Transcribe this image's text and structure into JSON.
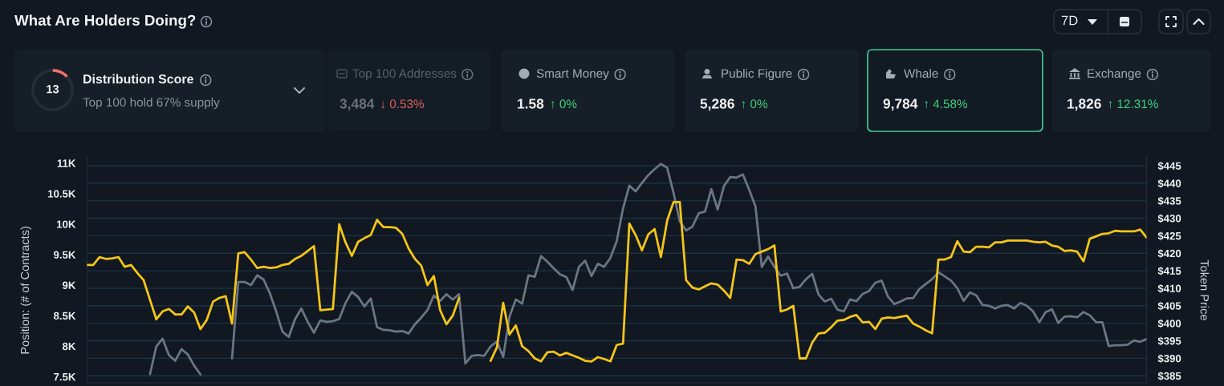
{
  "chart_data": [
    {
      "type": "other",
      "title": "What Are Holders Doing?",
      "annotations": [
        "7D",
        "Distribution Score",
        "Top 100 hold 67% supply",
        "Top 100 Addresses",
        "3,484",
        "↓ 0.53%",
        "Smart Money",
        "1.58",
        "↑ 0%",
        "Public Figure",
        "5,286",
        "↑ 0%",
        "Whale",
        "9,784",
        "↑ 4.58%",
        "Exchange",
        "1,826",
        "↑ 12.31%"
      ]
    },
    {
      "type": "donut",
      "categories": [
        null,
        null
      ],
      "values": [
        13,
        87
      ],
      "colors": [
        "#f0716d",
        "#252d37"
      ],
      "annotations": [
        "13"
      ]
    },
    {
      "type": "line",
      "ylabel": "Position: (# of Contracts)",
      "y2label": "Token Price",
      "categories": [
        null,
        null,
        null,
        null,
        null,
        null,
        null,
        null,
        null,
        null,
        null,
        null,
        null,
        null,
        null,
        null,
        null,
        null,
        null,
        null,
        null,
        null,
        null,
        null,
        null,
        null,
        null,
        null,
        null,
        null,
        null,
        null,
        null,
        null,
        null,
        null,
        null,
        null,
        null,
        null,
        null,
        null,
        null,
        null,
        null,
        null,
        null,
        null,
        null,
        null,
        null,
        null,
        null,
        null,
        null,
        null,
        null,
        null,
        null,
        null,
        null,
        null,
        null,
        null,
        null,
        null,
        null,
        null,
        null,
        null,
        null,
        null,
        null,
        null,
        null,
        null,
        null,
        null,
        null,
        null,
        null,
        null,
        null,
        null,
        null,
        null,
        null,
        null,
        null,
        null,
        null,
        null,
        null,
        null,
        null,
        null,
        null,
        null,
        null,
        null,
        null,
        null,
        null,
        null,
        null,
        null,
        null,
        null,
        null,
        null,
        null,
        null,
        null,
        null,
        null,
        null,
        null,
        null,
        null,
        null,
        null,
        null,
        null,
        null,
        null,
        null,
        null,
        null,
        null,
        null,
        null,
        null,
        null,
        null,
        null,
        null,
        null,
        null,
        null,
        null,
        null,
        null,
        null,
        null,
        null,
        null,
        null,
        null,
        null,
        null,
        null,
        null,
        null,
        null,
        null,
        null,
        null,
        null,
        null,
        null,
        null,
        null,
        null,
        null,
        null,
        null,
        null,
        null,
        null
      ],
      "series": [
        {
          "color": "#f5c518",
          "values": [
            9330,
            9330,
            9460,
            9430,
            9440,
            9460,
            9300,
            9330,
            9200,
            9080,
            8760,
            8440,
            8570,
            8610,
            8520,
            8520,
            8650,
            8550,
            8280,
            8430,
            8730,
            8790,
            8820,
            8370,
            9520,
            9540,
            9420,
            9280,
            9300,
            9280,
            9290,
            9330,
            9350,
            9430,
            9480,
            9560,
            9640,
            8590,
            8600,
            8610,
            10000,
            9700,
            9480,
            9710,
            9770,
            9820,
            10070,
            9950,
            9950,
            9940,
            9840,
            9600,
            9430,
            9320,
            9000,
            9150,
            8590,
            8360,
            8500,
            8790,
            null,
            null,
            null,
            null,
            null,
            null,
            null,
            null,
            null,
            null,
            null,
            null,
            null,
            null,
            null,
            null,
            null,
            null,
            null,
            null,
            null,
            null,
            null,
            null,
            null,
            null,
            null,
            null,
            null,
            null,
            null,
            null,
            null,
            null,
            null,
            null,
            null,
            null,
            null,
            null,
            null,
            null,
            null,
            null,
            null,
            null,
            null,
            null,
            null,
            null,
            null,
            null,
            null,
            null,
            null,
            null,
            null,
            null,
            null,
            null,
            null,
            null,
            null,
            null,
            null,
            null,
            null,
            null,
            null,
            null,
            null,
            null,
            null,
            null,
            null,
            null,
            null,
            null,
            null,
            null,
            null,
            null,
            null,
            null,
            null,
            null,
            null,
            null,
            null,
            null,
            null,
            null,
            null,
            null,
            null,
            null,
            null,
            null,
            null,
            null,
            null,
            null,
            null,
            null,
            null,
            null,
            null,
            null,
            null
          ]
        },
        {
          "color": "#f5c518",
          "values": [
            null,
            null,
            null,
            null,
            null,
            null,
            null,
            null,
            null,
            null,
            null,
            null,
            null,
            null,
            null,
            null,
            null,
            null,
            null,
            null,
            null,
            null,
            null,
            null,
            null,
            null,
            null,
            null,
            null,
            null,
            null,
            null,
            null,
            null,
            null,
            null,
            null,
            null,
            null,
            null,
            null,
            null,
            null,
            null,
            null,
            null,
            null,
            null,
            null,
            null,
            null,
            null,
            null,
            null,
            null,
            null,
            null,
            null,
            null,
            null,
            null,
            null,
            null,
            null,
            7760,
            7980,
            8710,
            8190,
            8340,
            8000,
            7920,
            7800,
            7750,
            7900,
            7910,
            7850,
            7890,
            7850,
            7810,
            7760,
            7750,
            7820,
            7790,
            7750,
            8020,
            8040,
            10010,
            9820,
            9570,
            9830,
            9920,
            9460,
            10060,
            10360,
            10360,
            9080,
            8960,
            8930,
            8980,
            9030,
            9010,
            8910,
            8790,
            9420,
            9410,
            9350,
            9510,
            9550,
            9590,
            9650,
            8570,
            8600,
            8660,
            7800,
            7800,
            8060,
            8210,
            8220,
            8310,
            8420,
            8430,
            8480,
            8510,
            8390,
            8400,
            8280,
            8450,
            8470,
            8460,
            8480,
            8500,
            8370,
            8320,
            8260,
            8210,
            9420,
            9420,
            9460,
            9720,
            9550,
            9540,
            9630,
            9630,
            9620,
            9700,
            9700,
            9730,
            9730,
            9730,
            9730,
            9710,
            9700,
            9710,
            9650,
            9630,
            9560,
            9570,
            9550,
            9390,
            9760,
            9800,
            9840,
            9850,
            9890,
            9880,
            9880,
            9880,
            9910,
            9780
          ]
        },
        {
          "color": "#6b7684",
          "axis": "y2",
          "values": [
            null,
            null,
            null,
            null,
            null,
            null,
            null,
            null,
            null,
            null,
            385.5,
            393.4,
            395.6,
            390.9,
            389.3,
            392.6,
            391.1,
            387.9,
            385.4,
            null,
            null,
            null,
            null,
            null,
            null,
            null,
            null,
            null,
            null,
            null,
            null,
            null,
            null,
            null,
            null,
            null,
            null,
            null,
            null,
            null,
            null,
            null,
            null,
            null,
            null,
            null,
            null,
            null,
            null,
            null,
            null,
            null,
            null,
            null,
            null,
            null,
            null,
            null,
            null,
            null,
            null,
            null,
            null,
            null,
            null,
            null,
            null,
            null,
            null,
            null,
            null,
            null,
            null,
            null,
            null,
            null,
            null,
            null,
            null,
            null,
            null,
            null,
            null,
            null,
            null,
            null,
            null,
            null,
            null,
            null,
            null,
            null,
            null,
            null,
            null,
            null,
            null,
            null,
            null,
            null,
            null,
            null,
            null,
            null,
            null,
            null,
            null,
            null,
            null,
            null,
            null,
            null,
            null,
            null,
            null,
            null,
            null,
            null,
            null,
            null,
            null,
            null,
            null,
            null,
            null,
            null,
            null,
            null,
            null,
            null,
            null,
            null,
            null,
            null,
            null,
            null,
            null,
            null,
            null,
            null,
            null,
            null,
            null,
            null,
            null,
            null,
            null,
            null,
            null,
            null,
            null,
            null,
            null,
            null,
            null,
            null,
            null,
            null,
            null,
            null,
            null,
            null,
            null,
            null,
            null,
            null,
            null,
            null,
            null
          ]
        },
        {
          "color": "#6b7684",
          "axis": "y2",
          "values": [
            null,
            null,
            null,
            null,
            null,
            null,
            null,
            null,
            null,
            null,
            null,
            null,
            null,
            null,
            null,
            null,
            null,
            null,
            null,
            null,
            null,
            null,
            null,
            390.0,
            411.8,
            411.8,
            410.9,
            413.7,
            412.5,
            408.6,
            403.4,
            397.6,
            396.1,
            401.2,
            404.2,
            400.4,
            397.3,
            400.8,
            400.4,
            400.6,
            401.2,
            405.8,
            409.0,
            407.5,
            404.8,
            407.1,
            398.9,
            398.1,
            398.0,
            397.6,
            397.8,
            397.1,
            399.7,
            401.6,
            403.8,
            407.9,
            406.4,
            408.3,
            406.8,
            408.3,
            388.5,
            390.7,
            390.9,
            390.7,
            393.4,
            394.8,
            390.4,
            401.9,
            406.8,
            405.6,
            413.7,
            413.3,
            419.2,
            417.6,
            415.7,
            414.0,
            413.2,
            409.5,
            416.1,
            417.9,
            413.5,
            417.0,
            416.1,
            418.7,
            423.5,
            432.8,
            439.3,
            437.7,
            440.1,
            442.3,
            444.0,
            445.5,
            444.4,
            437.3,
            429.1,
            426.5,
            427.6,
            431.4,
            431.9,
            438.3,
            432.5,
            439.2,
            441.8,
            441.6,
            442.5,
            438.1,
            433.4,
            416.1,
            419.1,
            416.1,
            413.6,
            414.2,
            410.0,
            410.4,
            412.6,
            414.1,
            408.2,
            406.2,
            407.0,
            403.9,
            403.4,
            406.8,
            406.3,
            408.4,
            409.2,
            411.6,
            412.2,
            407.6,
            405.5,
            406.2,
            407.1,
            407.2,
            409.8,
            411.2,
            412.6,
            414.6,
            413.4,
            412.2,
            410.0,
            406.4,
            408.8,
            408.0,
            405.2,
            405.0,
            404.2,
            405.0,
            405.2,
            404.2,
            405.8,
            405.0,
            403.4,
            400.3,
            403.2,
            404.0,
            400.1,
            401.9,
            402.0,
            401.7,
            403.2,
            402.3,
            400.3,
            400.3,
            393.5,
            393.7,
            393.7,
            393.9,
            395.1,
            394.7,
            395.5
          ]
        }
      ],
      "ylim": [
        7400,
        11100
      ],
      "yticks": [
        {
          "value": 11000,
          "label": "11K"
        },
        {
          "value": 10500,
          "label": "10.5K"
        },
        {
          "value": 10000,
          "label": "10K"
        },
        {
          "value": 9500,
          "label": "9.5K"
        },
        {
          "value": 9000,
          "label": "9K"
        },
        {
          "value": 8500,
          "label": "8.5K"
        },
        {
          "value": 8000,
          "label": "8K"
        },
        {
          "value": 7500,
          "label": "7.5K"
        }
      ],
      "y2lim": [
        383,
        447.5
      ],
      "y2ticks": [
        {
          "value": 445,
          "label": "$445"
        },
        {
          "value": 440,
          "label": "$440"
        },
        {
          "value": 435,
          "label": "$435"
        },
        {
          "value": 430,
          "label": "$430"
        },
        {
          "value": 425,
          "label": "$425"
        },
        {
          "value": 420,
          "label": "$420"
        },
        {
          "value": 415,
          "label": "$415"
        },
        {
          "value": 410,
          "label": "$410"
        },
        {
          "value": 405,
          "label": "$405"
        },
        {
          "value": 400,
          "label": "$400"
        },
        {
          "value": 395,
          "label": "$395"
        },
        {
          "value": 390,
          "label": "$390"
        },
        {
          "value": 385,
          "label": "$385"
        }
      ],
      "grid": "y2"
    }
  ]
}
